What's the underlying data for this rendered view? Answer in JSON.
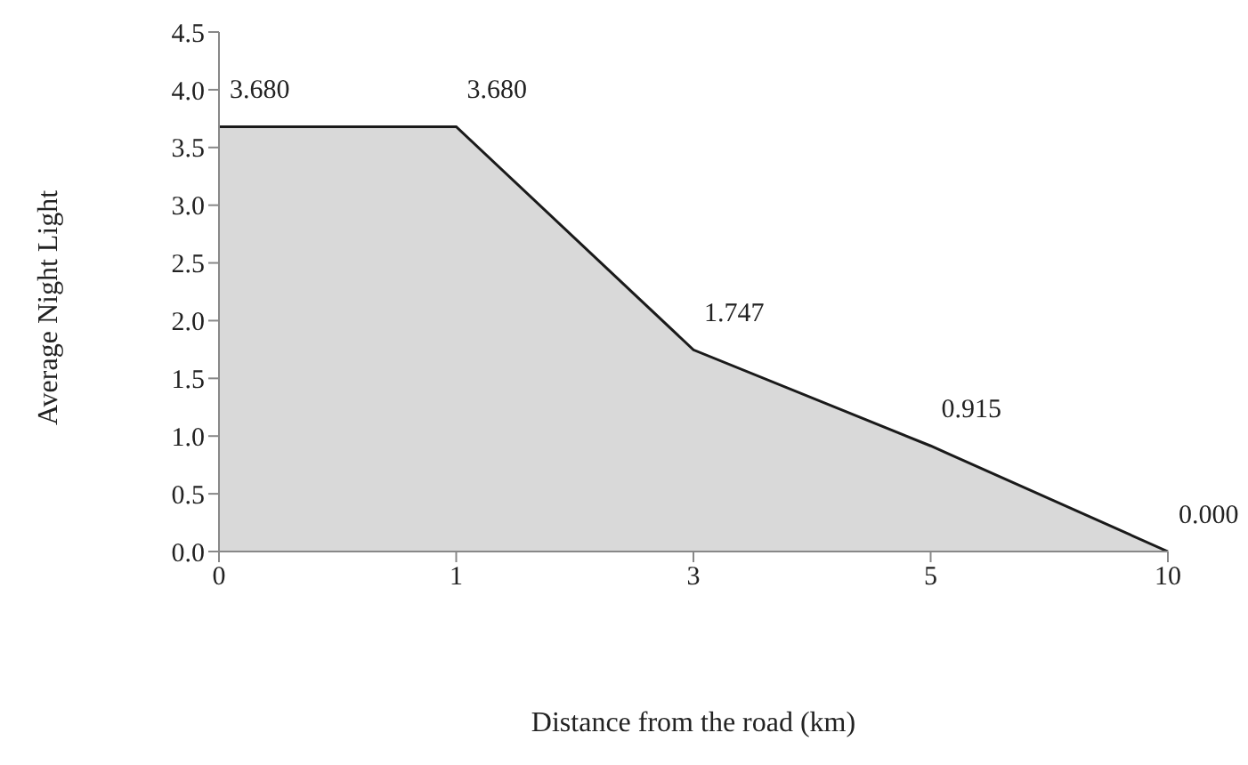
{
  "chart_data": {
    "type": "area",
    "xlabel": "Distance from the road (km)",
    "ylabel": "Average Night Light",
    "categories": [
      "0",
      "1",
      "3",
      "5",
      "10"
    ],
    "values": [
      3.68,
      3.68,
      1.747,
      0.915,
      0.0
    ],
    "value_labels": [
      "3.680",
      "3.680",
      "1.747",
      "0.915",
      "0.000"
    ],
    "color": "#d9d9d9",
    "ylim": [
      0,
      4.5
    ],
    "yticks": [
      {
        "value": 0,
        "label": "0.0"
      },
      {
        "value": 0.5,
        "label": "0.5"
      },
      {
        "value": 1,
        "label": "1.0"
      },
      {
        "value": 1.5,
        "label": "1.5"
      },
      {
        "value": 2,
        "label": "2.0"
      },
      {
        "value": 2.5,
        "label": "2.5"
      },
      {
        "value": 3,
        "label": "3.0"
      },
      {
        "value": 3.5,
        "label": "3.5"
      },
      {
        "value": 4,
        "label": "4.0"
      },
      {
        "value": 4.5,
        "label": "4.5"
      }
    ],
    "grid": false,
    "legend": false
  }
}
